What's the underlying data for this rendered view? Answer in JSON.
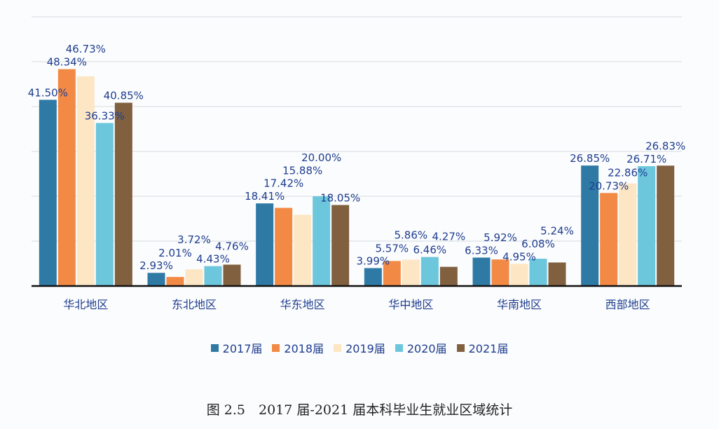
{
  "chart_data": {
    "type": "bar",
    "title": "",
    "xlabel": "",
    "ylabel": "",
    "ylim": [
      0,
      60
    ],
    "grid": true,
    "legend_position": "bottom",
    "categories": [
      "华北地区",
      "东北地区",
      "华东地区",
      "华中地区",
      "华南地区",
      "西部地区"
    ],
    "series": [
      {
        "name": "2017届",
        "color": "#2e7aa5",
        "values": [
          41.5,
          2.93,
          18.41,
          3.99,
          6.33,
          26.85
        ],
        "labels": [
          "41.50%",
          "2.93%",
          "18.41%",
          "3.99%",
          "6.33%",
          "26.85%"
        ]
      },
      {
        "name": "2018届",
        "color": "#f28a45",
        "values": [
          48.34,
          2.01,
          17.42,
          5.57,
          5.92,
          20.73
        ],
        "labels": [
          "48.34%",
          "2.01%",
          "17.42%",
          "5.57%",
          "5.92%",
          "20.73%"
        ]
      },
      {
        "name": "2019届",
        "color": "#fde6c4",
        "values": [
          46.73,
          3.72,
          15.88,
          5.86,
          4.95,
          22.86
        ],
        "labels": [
          "46.73%",
          "3.72%",
          "15.88%",
          "5.86%",
          "4.95%",
          "22.86%"
        ]
      },
      {
        "name": "2020届",
        "color": "#6cc6dc",
        "values": [
          36.33,
          4.43,
          20.0,
          6.46,
          6.08,
          26.71
        ],
        "labels": [
          "36.33%",
          "4.43%",
          "20.00%",
          "6.46%",
          "6.08%",
          "26.71%"
        ]
      },
      {
        "name": "2021届",
        "color": "#80603f",
        "values": [
          40.85,
          4.76,
          18.05,
          4.27,
          5.24,
          26.83
        ],
        "labels": [
          "40.85%",
          "4.76%",
          "18.05%",
          "4.27%",
          "5.24%",
          "26.83%"
        ]
      }
    ]
  },
  "caption": "图 2.5　2017 届-2021 届本科毕业生就业区域统计"
}
